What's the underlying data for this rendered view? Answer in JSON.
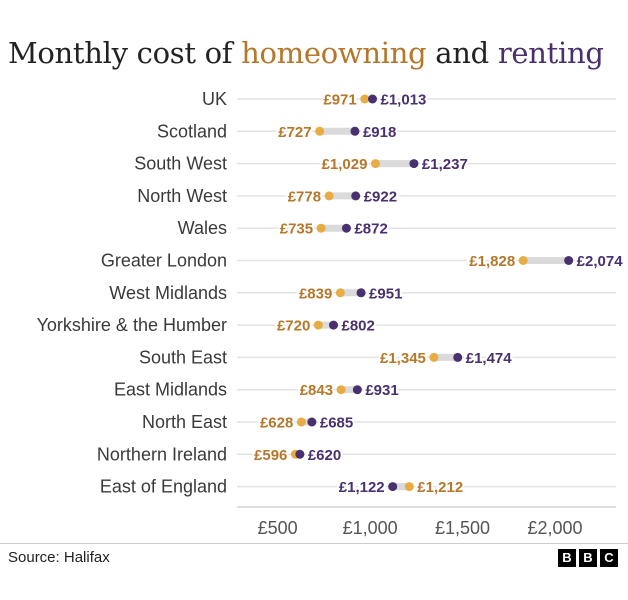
{
  "header": {
    "title_prefix": "Monthly cost of ",
    "title_homeowning": "homeowning",
    "title_and": " and ",
    "title_renting": "renting"
  },
  "colors": {
    "homeowning": "#b5772a",
    "homeowning_dot": "#e8ad42",
    "renting": "#49306f",
    "connector": "#dadada",
    "gridline": "#e2e2e2"
  },
  "chart_data": {
    "type": "dumbbell",
    "title": "Monthly cost of homeowning and renting",
    "xlabel": "",
    "ylabel": "",
    "xlim": [
      280,
      2330
    ],
    "xticks": [
      500,
      1000,
      1500,
      2000
    ],
    "xtick_labels": [
      "£500",
      "£1,000",
      "£1,500",
      "£2,000"
    ],
    "currency_prefix": "£",
    "grid": true,
    "categories": [
      "UK",
      "Scotland",
      "South West",
      "North West",
      "Wales",
      "Greater London",
      "West Midlands",
      "Yorkshire & the Humber",
      "South East",
      "East Midlands",
      "North East",
      "Northern Ireland",
      "East of England"
    ],
    "series": [
      {
        "name": "homeowning",
        "values": [
          971,
          727,
          1029,
          778,
          735,
          1828,
          839,
          720,
          1345,
          843,
          628,
          596,
          1212
        ]
      },
      {
        "name": "renting",
        "values": [
          1013,
          918,
          1237,
          922,
          872,
          2074,
          951,
          802,
          1474,
          931,
          685,
          620,
          1122
        ]
      }
    ]
  },
  "footer": {
    "source": "Source: Halifax",
    "logo_letters": [
      "B",
      "B",
      "C"
    ]
  }
}
